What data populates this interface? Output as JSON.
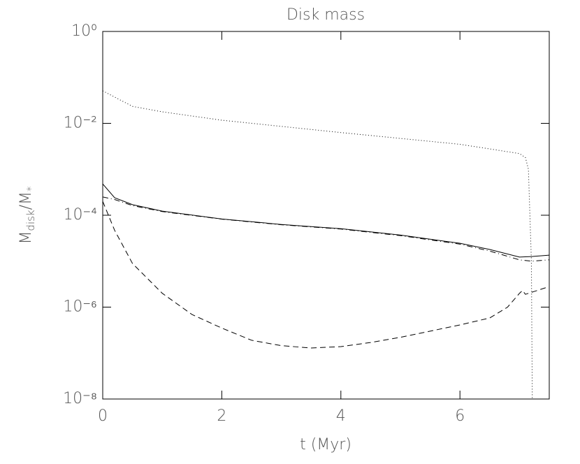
{
  "chart_data": {
    "type": "line",
    "title": "Disk mass",
    "xlabel": "t (Myr)",
    "ylabel": [
      "M",
      "disk",
      "/M",
      "*"
    ],
    "xlim": [
      0,
      7.5
    ],
    "xticks": [
      0,
      2,
      4,
      6
    ],
    "ylim": [
      1e-08,
      1
    ],
    "log_y": true,
    "yticks": [
      {
        "value": 1e-08,
        "label": "10⁻⁸"
      },
      {
        "value": 1e-06,
        "label": "10⁻⁶"
      },
      {
        "value": 0.0001,
        "label": "10⁻⁴"
      },
      {
        "value": 0.01,
        "label": "10⁻²"
      },
      {
        "value": 1,
        "label": "10⁰"
      }
    ],
    "series": [
      {
        "color": "#000000",
        "dash": "solid",
        "x": [
          0,
          0.2,
          0.5,
          1,
          2,
          3,
          4,
          5,
          6,
          6.5,
          7,
          7.2,
          7.5
        ],
        "values": [
          0.00048,
          0.00024,
          0.00017,
          0.000123,
          8.3e-05,
          6.3e-05,
          5.1e-05,
          3.7e-05,
          2.45e-05,
          1.8e-05,
          1.23e-05,
          1.26e-05,
          1.35e-05
        ]
      },
      {
        "color": "#000000",
        "dash": "dotted",
        "x": [
          0,
          0.5,
          1,
          2,
          4,
          6,
          7,
          7.1,
          7.15,
          7.2,
          7.22
        ],
        "values": [
          0.051,
          0.0234,
          0.0178,
          0.0117,
          0.0063,
          0.0035,
          0.0022,
          0.0018,
          0.001,
          1e-05,
          1e-09
        ]
      },
      {
        "color": "#000000",
        "dash": "dashed",
        "x": [
          0,
          0.2,
          0.5,
          1,
          1.5,
          2,
          2.5,
          3,
          3.5,
          4,
          4.5,
          5,
          5.5,
          6,
          6.5,
          6.8,
          7,
          7.05,
          7.1,
          7.5
        ],
        "values": [
          0.0002,
          4.7e-05,
          8.9e-06,
          2e-06,
          6.9e-07,
          3.5e-07,
          1.9e-07,
          1.45e-07,
          1.29e-07,
          1.38e-07,
          1.7e-07,
          2.2e-07,
          3e-07,
          4.1e-07,
          5.8e-07,
          1e-06,
          2e-06,
          2.3e-06,
          1.9e-06,
          2.8e-06
        ]
      },
      {
        "color": "#000000",
        "dash": "dashdot",
        "x": [
          0,
          0.2,
          0.5,
          1,
          2,
          3,
          4,
          5,
          6,
          6.5,
          7,
          7.2,
          7.5
        ],
        "values": [
          0.00025,
          0.00022,
          0.000162,
          0.00012,
          8.2e-05,
          6.2e-05,
          5e-05,
          3.6e-05,
          2.35e-05,
          1.66e-05,
          1.07e-05,
          1e-05,
          1.07e-05
        ]
      }
    ]
  }
}
